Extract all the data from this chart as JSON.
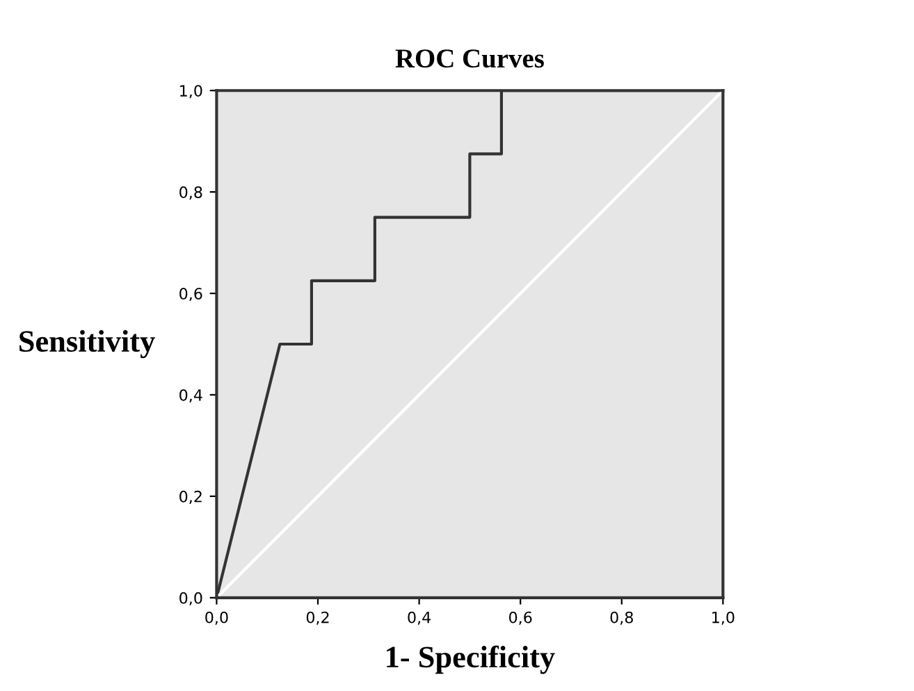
{
  "chart_data": {
    "type": "line",
    "title": "ROC Curves",
    "xlabel": "1- Specificity",
    "ylabel": "Sensitivity",
    "series": [
      {
        "color": "#333333",
        "x": [
          0,
          0.125,
          0.1875,
          0.1875,
          0.3125,
          0.3125,
          0.5,
          0.5,
          0.5625,
          0.5625,
          1
        ],
        "values": [
          0,
          0.5,
          0.5,
          0.625,
          0.625,
          0.75,
          0.75,
          0.875,
          0.875,
          1,
          1
        ]
      },
      {
        "color": "#ffffff",
        "x": [
          0,
          1
        ],
        "values": [
          0,
          1
        ]
      }
    ],
    "xlim": [
      0,
      1
    ],
    "ylim": [
      0,
      1
    ],
    "xticks": [
      {
        "value": 0,
        "label": "0,0"
      },
      {
        "value": 0.2,
        "label": "0,2"
      },
      {
        "value": 0.4,
        "label": "0,4"
      },
      {
        "value": 0.6,
        "label": "0,6"
      },
      {
        "value": 0.8,
        "label": "0,8"
      },
      {
        "value": 1,
        "label": "1,0"
      }
    ],
    "yticks": [
      {
        "value": 0,
        "label": "0,0"
      },
      {
        "value": 0.2,
        "label": "0,2"
      },
      {
        "value": 0.4,
        "label": "0,4"
      },
      {
        "value": 0.6,
        "label": "0,6"
      },
      {
        "value": 0.8,
        "label": "0,8"
      },
      {
        "value": 1,
        "label": "1,0"
      }
    ],
    "grid": false,
    "legend": false,
    "marker": "none",
    "line_style": "solid"
  }
}
